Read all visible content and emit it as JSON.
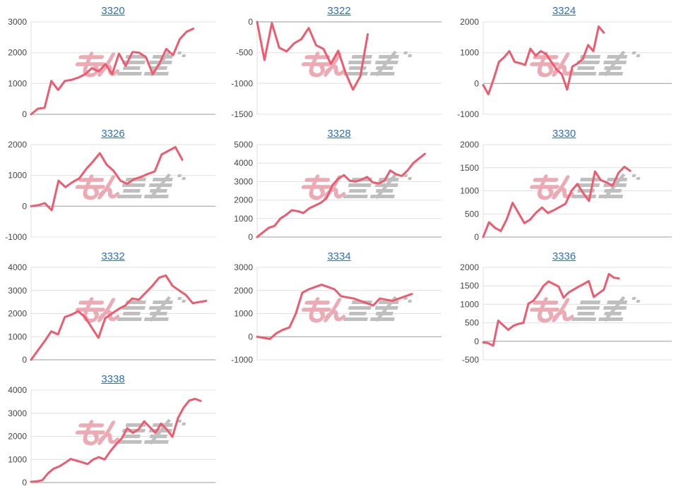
{
  "page": {
    "background": "#ffffff"
  },
  "style": {
    "line_color": "#ee5a6e",
    "title_link_color": "#2e6fc1",
    "tick_label_color": "#454545",
    "grid_color": "#e0e0e0",
    "zero_line_color": "#9a9a9a",
    "axis_line_color": "#e0e0e0",
    "watermark_pink": "#ecaab4",
    "watermark_gray": "#bfbfbf"
  },
  "watermark": {
    "label": "みんかぶ"
  },
  "chart_data": [
    {
      "type": "line",
      "title": "3320",
      "ylim": [
        0,
        3000
      ],
      "yticks": [
        3000,
        2000,
        1000,
        0
      ],
      "x_end_fraction": 0.88,
      "values": [
        0,
        180,
        210,
        1080,
        790,
        1080,
        1120,
        1190,
        1300,
        1500,
        1390,
        1630,
        1300,
        1970,
        1570,
        2020,
        2000,
        1850,
        1300,
        1650,
        2120,
        1920,
        2440,
        2680,
        2780
      ]
    },
    {
      "type": "line",
      "title": "3322",
      "ylim": [
        -1500,
        0
      ],
      "yticks": [
        0,
        -500,
        -1000,
        -1500
      ],
      "x_end_fraction": 0.6,
      "values": [
        0,
        -620,
        -20,
        -420,
        -480,
        -350,
        -280,
        -100,
        -380,
        -440,
        -680,
        -470,
        -830,
        -1100,
        -880,
        -200
      ]
    },
    {
      "type": "line",
      "title": "3324",
      "ylim": [
        -1000,
        2000
      ],
      "yticks": [
        2000,
        1000,
        0,
        -1000
      ],
      "x_end_fraction": 0.64,
      "values": [
        -50,
        -350,
        150,
        700,
        850,
        1050,
        700,
        660,
        600,
        1130,
        900,
        1050,
        950,
        700,
        450,
        300,
        -200,
        550,
        650,
        800,
        1250,
        1050,
        1850,
        1650
      ]
    },
    {
      "type": "line",
      "title": "3326",
      "ylim": [
        -1000,
        2000
      ],
      "yticks": [
        2000,
        1000,
        0,
        -1000
      ],
      "x_end_fraction": 0.82,
      "values": [
        0,
        30,
        100,
        -130,
        830,
        620,
        780,
        900,
        1200,
        1450,
        1720,
        1350,
        1150,
        830,
        730,
        880,
        950,
        1050,
        1130,
        1680,
        1800,
        1920,
        1510
      ]
    },
    {
      "type": "line",
      "title": "3328",
      "ylim": [
        0,
        5000
      ],
      "yticks": [
        5000,
        4000,
        3000,
        2000,
        1000,
        0
      ],
      "x_end_fraction": 0.91,
      "values": [
        0,
        250,
        500,
        600,
        1000,
        1200,
        1450,
        1400,
        1300,
        1550,
        1700,
        1850,
        2100,
        2800,
        3150,
        3350,
        3050,
        3000,
        3100,
        3250,
        2950,
        2900,
        3050,
        3600,
        3400,
        3300,
        3600,
        4000,
        4250,
        4500
      ]
    },
    {
      "type": "line",
      "title": "3330",
      "ylim": [
        0,
        2000
      ],
      "yticks": [
        2000,
        1500,
        1000,
        500,
        0
      ],
      "x_end_fraction": 0.78,
      "values": [
        0,
        320,
        200,
        130,
        380,
        740,
        520,
        300,
        380,
        530,
        640,
        520,
        580,
        650,
        720,
        1000,
        1150,
        950,
        780,
        1420,
        1230,
        1180,
        1110,
        1390,
        1520,
        1430
      ]
    },
    {
      "type": "line",
      "title": "3332",
      "ylim": [
        0,
        4000
      ],
      "yticks": [
        4000,
        3000,
        2000,
        1000,
        0
      ],
      "x_end_fraction": 0.95,
      "values": [
        0,
        400,
        800,
        1230,
        1100,
        1850,
        1950,
        2100,
        1850,
        1400,
        950,
        1800,
        2000,
        2200,
        2350,
        2650,
        2600,
        2900,
        3200,
        3550,
        3650,
        3200,
        3000,
        2800,
        2450,
        2500,
        2550
      ]
    },
    {
      "type": "line",
      "title": "3334",
      "ylim": [
        -1000,
        3000
      ],
      "yticks": [
        3000,
        2000,
        1000,
        0,
        -1000
      ],
      "x_end_fraction": 0.84,
      "values": [
        0,
        -50,
        -100,
        150,
        300,
        400,
        1000,
        1900,
        2050,
        2150,
        2250,
        2150,
        2050,
        1750,
        1700,
        1650,
        1550,
        1450,
        1350,
        1650,
        1600,
        1550,
        1650,
        1750,
        1850
      ]
    },
    {
      "type": "line",
      "title": "3336",
      "ylim": [
        -500,
        2000
      ],
      "yticks": [
        2000,
        1500,
        1000,
        500,
        0,
        -500
      ],
      "x_end_fraction": 0.72,
      "values": [
        -30,
        -50,
        -120,
        560,
        430,
        310,
        420,
        470,
        500,
        1020,
        1100,
        1280,
        1500,
        1620,
        1550,
        1480,
        1180,
        1320,
        1400,
        1480,
        1550,
        1630,
        1200,
        1300,
        1400,
        1820,
        1720,
        1700
      ]
    },
    {
      "type": "line",
      "title": "3338",
      "ylim": [
        0,
        4000
      ],
      "yticks": [
        4000,
        3000,
        2000,
        1000,
        0
      ],
      "x_end_fraction": 0.92,
      "values": [
        30,
        50,
        100,
        400,
        600,
        700,
        850,
        1020,
        950,
        880,
        800,
        1000,
        1100,
        1000,
        1350,
        1650,
        1900,
        2350,
        2150,
        2300,
        2650,
        2400,
        2150,
        2550,
        2300,
        1980,
        2800,
        3250,
        3550,
        3620,
        3530
      ]
    }
  ]
}
